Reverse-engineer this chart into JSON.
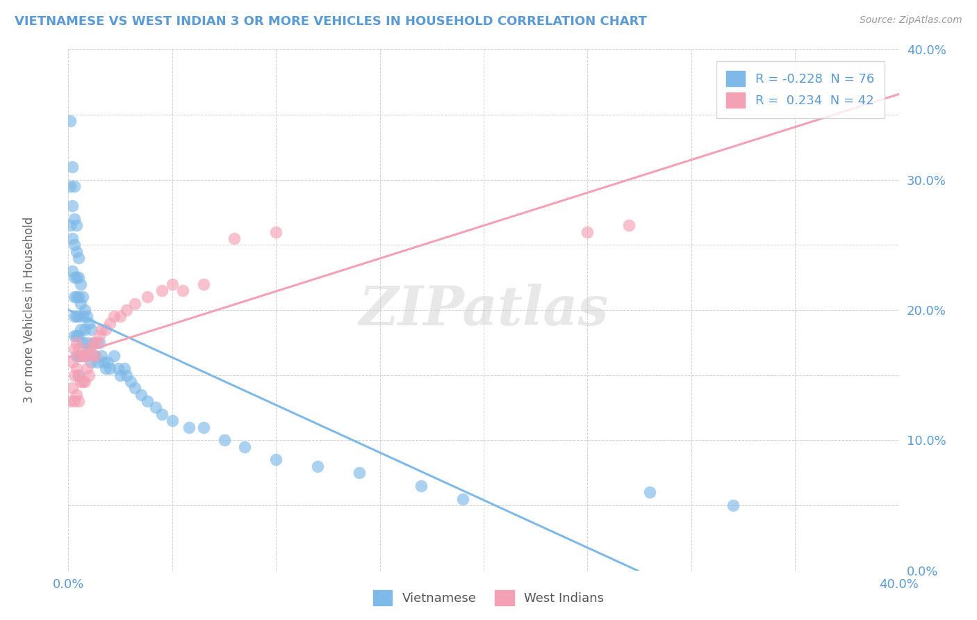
{
  "title": "VIETNAMESE VS WEST INDIAN 3 OR MORE VEHICLES IN HOUSEHOLD CORRELATION CHART",
  "source": "Source: ZipAtlas.com",
  "ylabel_label": "3 or more Vehicles in Household",
  "xlim": [
    0.0,
    0.4
  ],
  "ylim": [
    0.0,
    0.4
  ],
  "xticks": [
    0.0,
    0.05,
    0.1,
    0.15,
    0.2,
    0.25,
    0.3,
    0.35,
    0.4
  ],
  "yticks": [
    0.0,
    0.05,
    0.1,
    0.15,
    0.2,
    0.25,
    0.3,
    0.35,
    0.4
  ],
  "r_vietnamese": -0.228,
  "n_vietnamese": 76,
  "r_west_indian": 0.234,
  "n_west_indian": 42,
  "color_vietnamese": "#7EB9E8",
  "color_west_indian": "#F4A0B5",
  "watermark": "ZIPatlas",
  "legend_labels": [
    "Vietnamese",
    "West Indians"
  ],
  "vietnamese_x": [
    0.001,
    0.001,
    0.001,
    0.002,
    0.002,
    0.002,
    0.002,
    0.003,
    0.003,
    0.003,
    0.003,
    0.003,
    0.003,
    0.003,
    0.004,
    0.004,
    0.004,
    0.004,
    0.004,
    0.004,
    0.004,
    0.005,
    0.005,
    0.005,
    0.005,
    0.005,
    0.005,
    0.005,
    0.006,
    0.006,
    0.006,
    0.006,
    0.007,
    0.007,
    0.007,
    0.008,
    0.008,
    0.008,
    0.009,
    0.009,
    0.01,
    0.01,
    0.011,
    0.011,
    0.012,
    0.013,
    0.014,
    0.015,
    0.016,
    0.017,
    0.018,
    0.019,
    0.02,
    0.022,
    0.024,
    0.025,
    0.027,
    0.028,
    0.03,
    0.032,
    0.035,
    0.038,
    0.042,
    0.045,
    0.05,
    0.058,
    0.065,
    0.075,
    0.085,
    0.1,
    0.12,
    0.14,
    0.17,
    0.19,
    0.28,
    0.32
  ],
  "vietnamese_y": [
    0.345,
    0.295,
    0.265,
    0.31,
    0.28,
    0.255,
    0.23,
    0.295,
    0.27,
    0.25,
    0.225,
    0.21,
    0.195,
    0.18,
    0.265,
    0.245,
    0.225,
    0.21,
    0.195,
    0.18,
    0.165,
    0.24,
    0.225,
    0.21,
    0.195,
    0.18,
    0.165,
    0.15,
    0.22,
    0.205,
    0.185,
    0.165,
    0.21,
    0.195,
    0.175,
    0.2,
    0.185,
    0.165,
    0.195,
    0.175,
    0.19,
    0.17,
    0.185,
    0.16,
    0.175,
    0.165,
    0.16,
    0.175,
    0.165,
    0.16,
    0.155,
    0.16,
    0.155,
    0.165,
    0.155,
    0.15,
    0.155,
    0.15,
    0.145,
    0.14,
    0.135,
    0.13,
    0.125,
    0.12,
    0.115,
    0.11,
    0.11,
    0.1,
    0.095,
    0.085,
    0.08,
    0.075,
    0.065,
    0.055,
    0.06,
    0.05
  ],
  "west_indian_x": [
    0.001,
    0.002,
    0.002,
    0.003,
    0.003,
    0.003,
    0.004,
    0.004,
    0.004,
    0.005,
    0.005,
    0.005,
    0.006,
    0.006,
    0.007,
    0.007,
    0.008,
    0.008,
    0.009,
    0.01,
    0.01,
    0.011,
    0.012,
    0.013,
    0.014,
    0.015,
    0.016,
    0.018,
    0.02,
    0.022,
    0.025,
    0.028,
    0.032,
    0.038,
    0.045,
    0.05,
    0.055,
    0.065,
    0.08,
    0.1,
    0.25,
    0.27
  ],
  "west_indian_y": [
    0.13,
    0.16,
    0.14,
    0.17,
    0.15,
    0.13,
    0.175,
    0.155,
    0.135,
    0.17,
    0.15,
    0.13,
    0.165,
    0.145,
    0.165,
    0.145,
    0.165,
    0.145,
    0.155,
    0.17,
    0.15,
    0.165,
    0.175,
    0.165,
    0.175,
    0.18,
    0.185,
    0.185,
    0.19,
    0.195,
    0.195,
    0.2,
    0.205,
    0.21,
    0.215,
    0.22,
    0.215,
    0.22,
    0.255,
    0.26,
    0.26,
    0.265
  ]
}
